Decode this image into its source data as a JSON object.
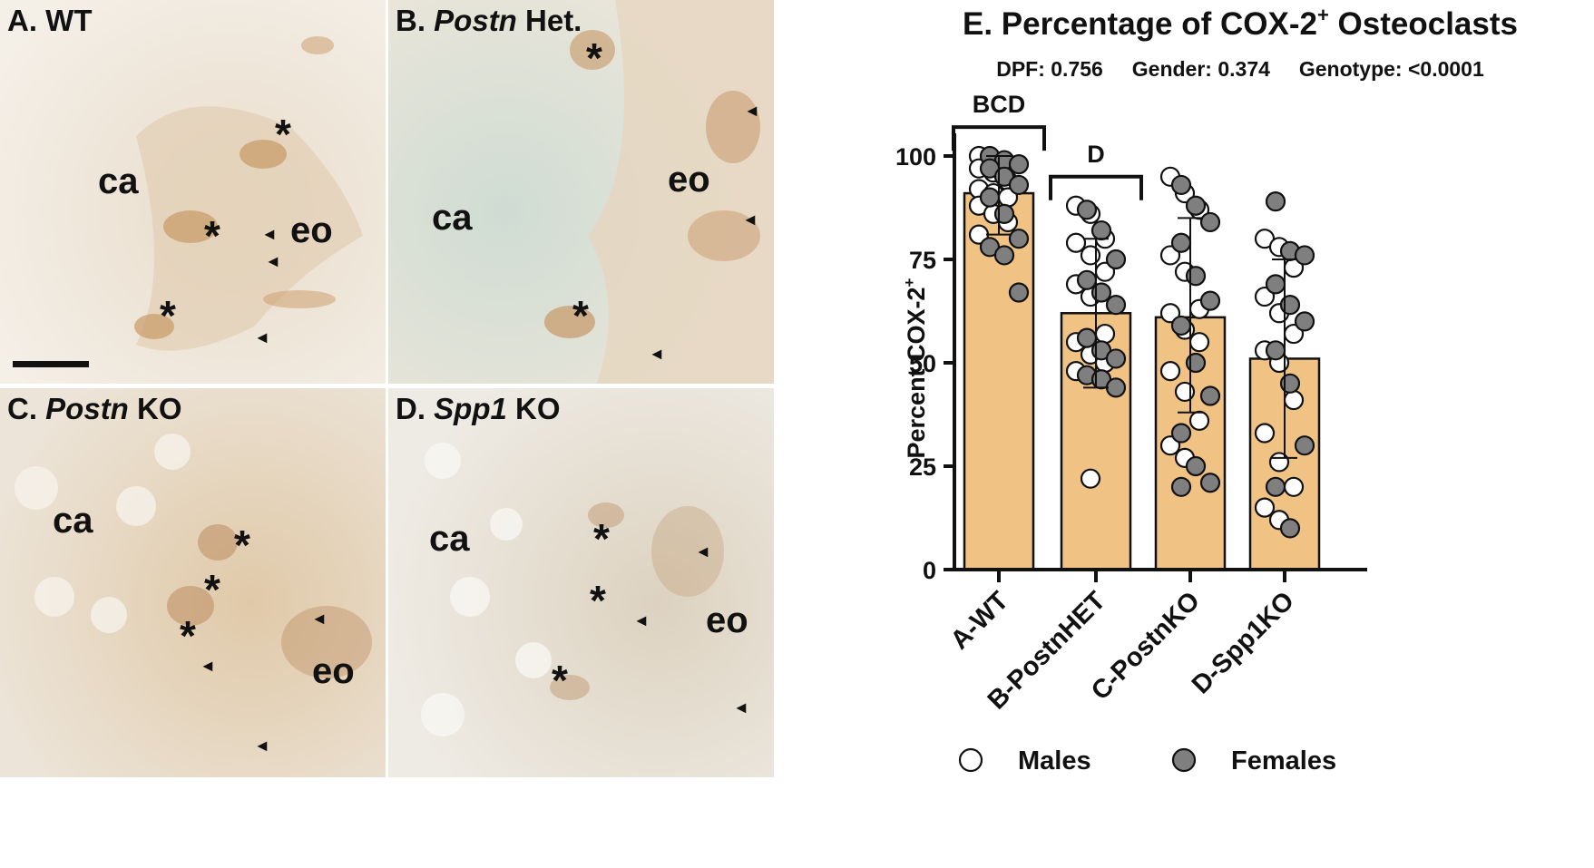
{
  "panels": [
    {
      "letter": "A.",
      "name": "WT",
      "italic": "",
      "rest": ""
    },
    {
      "letter": "B.",
      "name": "",
      "italic": "Postn",
      "rest": " Het."
    },
    {
      "letter": "C.",
      "name": "",
      "italic": "Postn",
      "rest": " KO"
    },
    {
      "letter": "D.",
      "name": "",
      "italic": "Spp1",
      "rest": " KO"
    }
  ],
  "annotations": {
    "ca": "ca",
    "eo": "eo",
    "star": "*",
    "arrow": "◄"
  },
  "colors": {
    "bar_fill": "#f0c283",
    "bar_stroke": "#111111",
    "male": "#ffffff",
    "female": "#7f7f7f"
  },
  "chart_data": {
    "type": "bar",
    "title_main": "E. Percentage of COX-2",
    "title_sup": "+",
    "title_end": " Osteoclasts",
    "subtitle": "DPF: 0.756     Gender: 0.374     Genotype: <0.0001",
    "ylabel_main": "Percent COX-2",
    "ylabel_sup": "+",
    "ylim": [
      0,
      100
    ],
    "yticks": [
      0,
      25,
      50,
      75,
      100
    ],
    "categories": [
      "A-WT",
      "B-PostnHET",
      "C-PostnKO",
      "D-Spp1KO"
    ],
    "values": [
      91,
      62,
      61,
      51
    ],
    "error_low": [
      81,
      44,
      38,
      27
    ],
    "error_high": [
      100,
      80,
      85,
      75
    ],
    "significance": [
      {
        "label": "BCD",
        "from": 0,
        "to": 0,
        "level": 107
      },
      {
        "label": "D",
        "from": 1,
        "to": 1,
        "level": 95
      }
    ],
    "legend": [
      {
        "label": "Males",
        "color": "#ffffff"
      },
      {
        "label": "Females",
        "color": "#7f7f7f"
      }
    ],
    "points": [
      {
        "group": 0,
        "males": [
          100,
          99,
          98,
          97,
          96,
          94,
          92,
          91,
          90,
          88,
          86,
          84,
          81
        ],
        "females": [
          100,
          99,
          98,
          97,
          95,
          93,
          90,
          86,
          80,
          78,
          76,
          67
        ]
      },
      {
        "group": 1,
        "males": [
          88,
          86,
          80,
          79,
          76,
          72,
          69,
          66,
          57,
          55,
          52,
          50,
          48,
          22
        ],
        "females": [
          87,
          82,
          75,
          70,
          67,
          64,
          56,
          53,
          51,
          47,
          46,
          44
        ]
      },
      {
        "group": 2,
        "males": [
          95,
          91,
          87,
          76,
          72,
          63,
          62,
          58,
          55,
          48,
          43,
          36,
          30,
          27
        ],
        "females": [
          93,
          88,
          84,
          79,
          71,
          65,
          59,
          50,
          42,
          33,
          25,
          21,
          20
        ]
      },
      {
        "group": 3,
        "males": [
          80,
          78,
          73,
          66,
          62,
          57,
          53,
          50,
          41,
          33,
          26,
          20,
          15,
          12
        ],
        "females": [
          89,
          77,
          76,
          69,
          64,
          60,
          53,
          45,
          30,
          20,
          10
        ]
      }
    ]
  }
}
